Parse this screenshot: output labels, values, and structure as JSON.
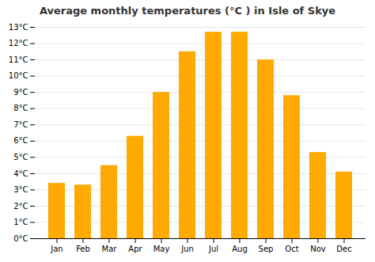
{
  "chart_data": {
    "type": "bar",
    "title": "Average monthly temperatures (°C ) in Isle of Skye",
    "categories": [
      "Jan",
      "Feb",
      "Mar",
      "Apr",
      "May",
      "Jun",
      "Jul",
      "Aug",
      "Sep",
      "Oct",
      "Nov",
      "Dec"
    ],
    "values": [
      3.4,
      3.3,
      4.5,
      6.3,
      9.0,
      11.5,
      12.7,
      12.7,
      11.0,
      8.8,
      5.3,
      4.1
    ],
    "color": "#FFAA00",
    "ylim": [
      0,
      13
    ],
    "yticks": [
      {
        "value": 0,
        "label": "0°C"
      },
      {
        "value": 1,
        "label": "1°C"
      },
      {
        "value": 2,
        "label": "2°C"
      },
      {
        "value": 3,
        "label": "3°C"
      },
      {
        "value": 4,
        "label": "4°C"
      },
      {
        "value": 5,
        "label": "5°C"
      },
      {
        "value": 6,
        "label": "6°C"
      },
      {
        "value": 7,
        "label": "7°C"
      },
      {
        "value": 8,
        "label": "8°C"
      },
      {
        "value": 9,
        "label": "9°C"
      },
      {
        "value": 10,
        "label": "10°C"
      },
      {
        "value": 11,
        "label": "11°C"
      },
      {
        "value": 12,
        "label": "12°C"
      },
      {
        "value": 13,
        "label": "13°C"
      }
    ],
    "grid": true
  }
}
